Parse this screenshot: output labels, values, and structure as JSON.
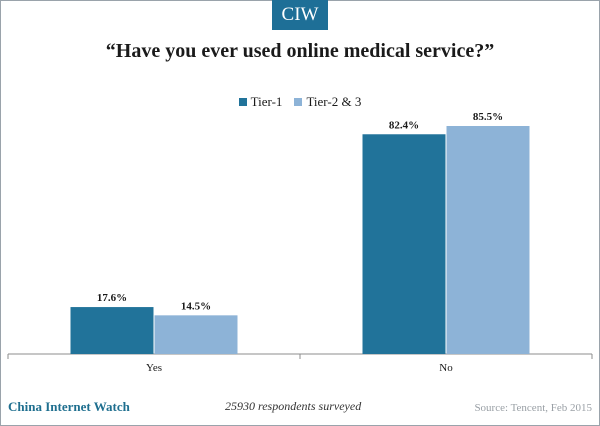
{
  "header": {
    "logo_text": "CIW"
  },
  "chart_data": {
    "type": "bar",
    "title": "“Have you ever used online medical service?”",
    "categories": [
      "Yes",
      "No"
    ],
    "series": [
      {
        "name": "Tier-1",
        "values": [
          17.6,
          82.4
        ],
        "labels": [
          "17.6%",
          "82.4%"
        ],
        "color": "#21739a"
      },
      {
        "name": "Tier-2 & 3",
        "values": [
          14.5,
          85.5
        ],
        "labels": [
          "14.5%",
          "85.5%"
        ],
        "color": "#8db3d7"
      }
    ],
    "ylim": [
      0,
      100
    ],
    "grid": false,
    "legend_position": "top-center"
  },
  "footer": {
    "brand": "China Internet Watch",
    "note": "25930 respondents surveyed",
    "source": "Source: Tencent, Feb 2015"
  }
}
